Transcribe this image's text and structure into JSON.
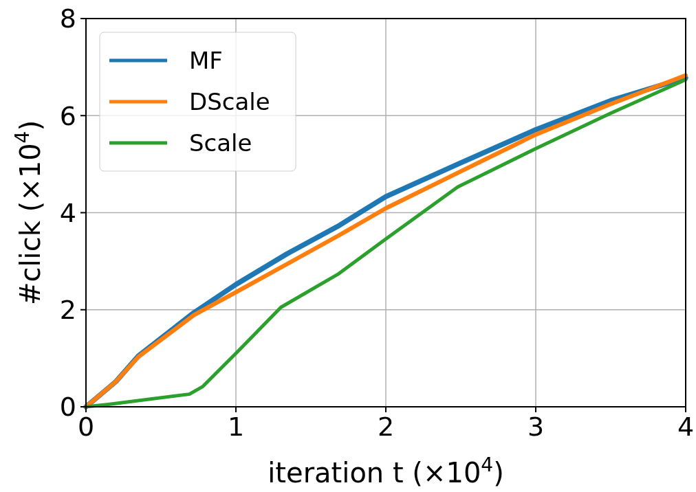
{
  "chart_data": {
    "type": "line",
    "xlabel": "iteration t (×10$^{4}$)",
    "ylabel": "#click (×10$^{4}$)",
    "xlim": [
      0,
      4
    ],
    "ylim": [
      0,
      8
    ],
    "xticks": [
      0,
      1,
      2,
      3,
      4
    ],
    "yticks": [
      0,
      2,
      4,
      6,
      8
    ],
    "grid": true,
    "legend": "top left",
    "series": [
      {
        "name": "MF",
        "color": "#1f77b4",
        "x": [
          0,
          0.2,
          0.35,
          0.72,
          1,
          1.34,
          1.68,
          2,
          2.48,
          3,
          3.5,
          4
        ],
        "values": [
          0,
          0.52,
          1.05,
          1.94,
          2.52,
          3.15,
          3.72,
          4.33,
          5.0,
          5.71,
          6.31,
          6.78
        ]
      },
      {
        "name": "DScale",
        "color": "#ff7f0e",
        "x": [
          0,
          0.2,
          0.35,
          0.72,
          1,
          1.34,
          1.68,
          2,
          2.48,
          3,
          3.5,
          4
        ],
        "values": [
          0,
          0.52,
          1.03,
          1.89,
          2.36,
          2.94,
          3.52,
          4.09,
          4.82,
          5.61,
          6.24,
          6.83
        ]
      },
      {
        "name": "Scale",
        "color": "#2ca02c",
        "x": [
          0,
          0.15,
          0.69,
          0.78,
          1,
          1.3,
          1.68,
          2,
          2.48,
          3,
          3.5,
          4
        ],
        "values": [
          0,
          0.05,
          0.26,
          0.42,
          1.1,
          2.05,
          2.73,
          3.46,
          4.53,
          5.32,
          6.05,
          6.74
        ]
      }
    ]
  }
}
